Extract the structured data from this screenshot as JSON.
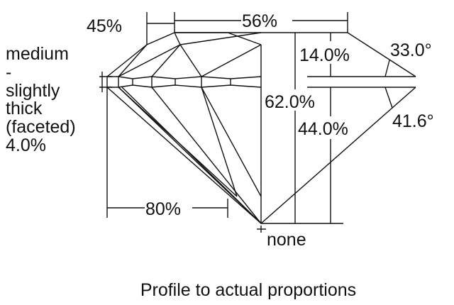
{
  "labels": {
    "crown_angle_width": "45%",
    "table": "56%",
    "girdle_lines": [
      "medium",
      "-",
      "slightly",
      "thick",
      "(faceted)",
      "4.0%"
    ],
    "crown_height": "14.0%",
    "crown_angle": "33.0°",
    "total_depth": "62.0%",
    "pavilion_depth": "44.0%",
    "pavilion_angle": "41.6°",
    "lower_half": "80%",
    "culet": "none"
  },
  "caption": "Profile to actual proportions"
}
